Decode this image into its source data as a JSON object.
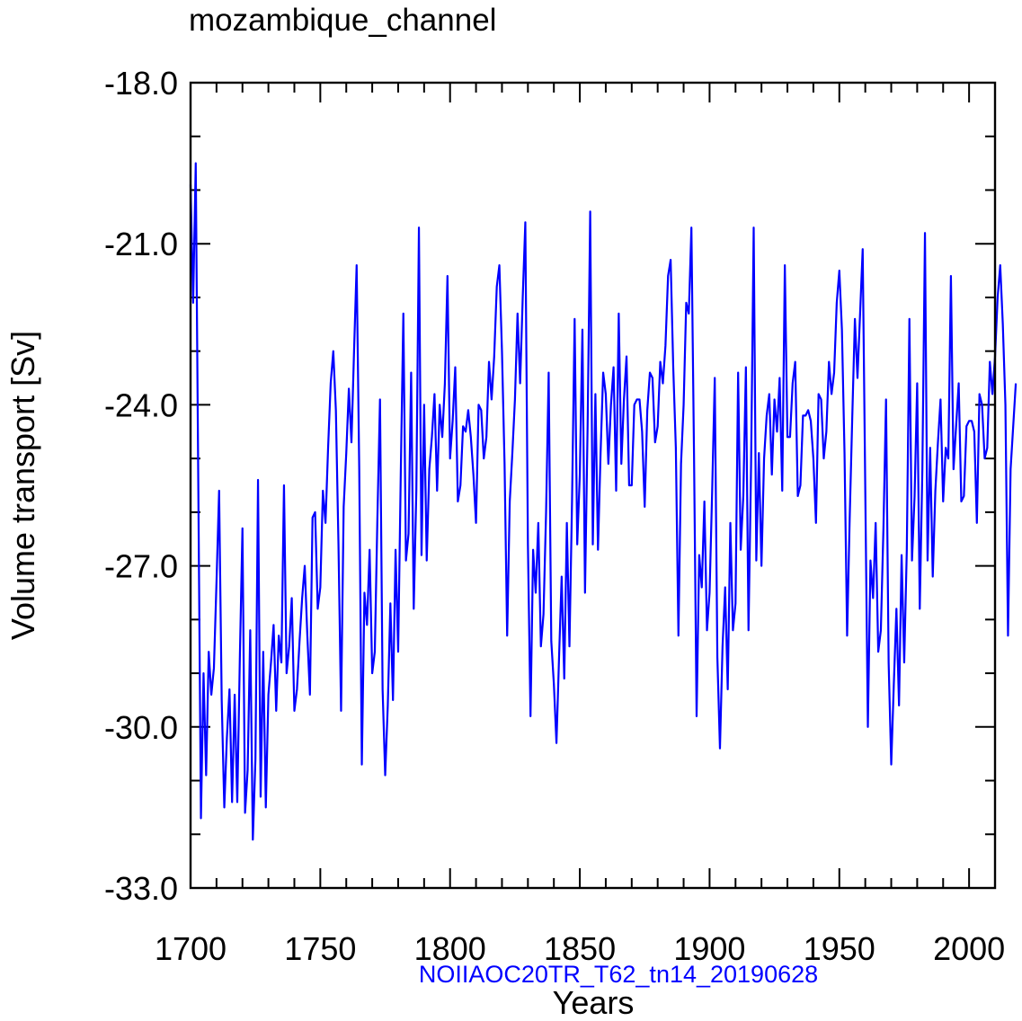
{
  "chart_data": {
    "type": "line",
    "title": "mozambique_channel",
    "xlabel": "Years",
    "ylabel": "Volume transport [Sv]",
    "subtitle": "NOIIAOC20TR_T62_tn14_20190628",
    "xlim": [
      1700,
      2010
    ],
    "ylim": [
      -33.0,
      -18.0
    ],
    "x_ticks": [
      "1700",
      "1750",
      "1800",
      "1850",
      "1900",
      "1950",
      "2000"
    ],
    "y_ticks": [
      "-18.0",
      "-21.0",
      "-24.0",
      "-27.0",
      "-30.0",
      "-33.0"
    ],
    "grid": false,
    "legend": "none",
    "series": [
      {
        "color": "#0000ff",
        "x_start": 1700,
        "x_step": 1,
        "values": [
          -19.9,
          -22.1,
          -19.5,
          -25.6,
          -31.7,
          -29.0,
          -30.9,
          -28.6,
          -29.4,
          -28.9,
          -27.3,
          -25.6,
          -29.5,
          -31.5,
          -30.2,
          -29.3,
          -31.4,
          -29.4,
          -31.4,
          -28.7,
          -26.3,
          -31.6,
          -30.8,
          -28.2,
          -32.1,
          -30.6,
          -25.4,
          -31.3,
          -28.6,
          -31.5,
          -29.4,
          -28.8,
          -28.1,
          -29.7,
          -28.3,
          -28.8,
          -25.5,
          -29.0,
          -28.5,
          -27.6,
          -29.7,
          -29.3,
          -28.4,
          -27.6,
          -27.0,
          -28.3,
          -29.4,
          -26.1,
          -26.0,
          -27.8,
          -27.4,
          -25.6,
          -26.2,
          -24.8,
          -23.6,
          -23.0,
          -24.1,
          -26.6,
          -29.7,
          -25.9,
          -24.9,
          -23.7,
          -24.7,
          -23.0,
          -21.4,
          -25.2,
          -30.7,
          -27.5,
          -28.1,
          -26.7,
          -29.0,
          -28.6,
          -26.1,
          -23.9,
          -29.3,
          -30.9,
          -29.6,
          -27.7,
          -29.5,
          -26.7,
          -28.6,
          -25.3,
          -22.3,
          -26.9,
          -26.4,
          -23.4,
          -27.8,
          -25.6,
          -20.7,
          -26.8,
          -24.0,
          -26.9,
          -25.2,
          -24.6,
          -23.8,
          -25.6,
          -24.0,
          -24.6,
          -23.6,
          -21.6,
          -25.0,
          -24.3,
          -23.3,
          -25.8,
          -25.5,
          -24.4,
          -24.5,
          -24.1,
          -24.6,
          -25.3,
          -26.2,
          -24.0,
          -24.1,
          -25.0,
          -24.6,
          -23.2,
          -23.9,
          -23.1,
          -21.8,
          -21.4,
          -23.0,
          -25.1,
          -28.3,
          -25.8,
          -24.9,
          -23.9,
          -22.3,
          -23.6,
          -22.0,
          -20.6,
          -26.6,
          -29.8,
          -26.7,
          -27.5,
          -26.2,
          -28.5,
          -27.9,
          -26.0,
          -23.4,
          -28.4,
          -29.2,
          -30.3,
          -28.7,
          -27.2,
          -29.1,
          -26.2,
          -28.5,
          -25.8,
          -22.4,
          -26.6,
          -25.3,
          -22.6,
          -27.5,
          -24.4,
          -20.4,
          -26.6,
          -23.8,
          -26.7,
          -24.9,
          -23.4,
          -23.8,
          -25.1,
          -24.0,
          -23.3,
          -25.6,
          -22.3,
          -25.1,
          -23.9,
          -23.1,
          -25.5,
          -25.5,
          -24.0,
          -23.9,
          -23.9,
          -24.5,
          -25.9,
          -24.1,
          -23.4,
          -23.5,
          -24.7,
          -24.4,
          -23.2,
          -23.6,
          -22.9,
          -21.6,
          -21.3,
          -23.3,
          -24.8,
          -28.3,
          -25.1,
          -24.0,
          -22.1,
          -22.3,
          -20.7,
          -24.9,
          -29.8,
          -26.8,
          -27.4,
          -25.8,
          -28.2,
          -27.5,
          -25.6,
          -23.5,
          -28.7,
          -30.4,
          -28.5,
          -27.4,
          -29.3,
          -26.2,
          -28.2,
          -27.7,
          -23.4,
          -26.7,
          -25.7,
          -23.3,
          -28.2,
          -25.1,
          -20.7,
          -26.9,
          -24.9,
          -27.0,
          -25.0,
          -24.2,
          -23.8,
          -25.3,
          -23.9,
          -24.5,
          -23.5,
          -25.6,
          -21.4,
          -24.6,
          -24.6,
          -23.6,
          -23.2,
          -25.7,
          -25.5,
          -24.2,
          -24.2,
          -24.1,
          -24.3,
          -25.0,
          -26.2,
          -23.8,
          -23.9,
          -25.0,
          -24.5,
          -23.2,
          -23.8,
          -23.4,
          -22.1,
          -21.5,
          -22.6,
          -24.9,
          -28.3,
          -26.1,
          -24.2,
          -22.4,
          -23.5,
          -22.3,
          -21.1,
          -25.6,
          -30.0,
          -26.9,
          -27.6,
          -26.2,
          -28.6,
          -28.2,
          -26.3,
          -23.9,
          -28.8,
          -30.7,
          -29.2,
          -27.8,
          -29.6,
          -26.8,
          -28.8,
          -26.7,
          -22.4,
          -26.9,
          -25.7,
          -23.6,
          -27.8,
          -25.2,
          -20.8,
          -26.9,
          -24.8,
          -27.2,
          -25.6,
          -24.7,
          -23.9,
          -25.8,
          -24.8,
          -25.0,
          -21.6,
          -25.2,
          -24.4,
          -23.6,
          -25.8,
          -25.7,
          -24.4,
          -24.3,
          -24.3,
          -24.5,
          -26.2,
          -23.8,
          -24.0,
          -25.0,
          -24.8,
          -23.2,
          -23.8,
          -23.1,
          -22.0,
          -21.4,
          -22.5,
          -24.0,
          -28.3,
          -25.2,
          -24.4,
          -23.6
        ]
      }
    ]
  }
}
